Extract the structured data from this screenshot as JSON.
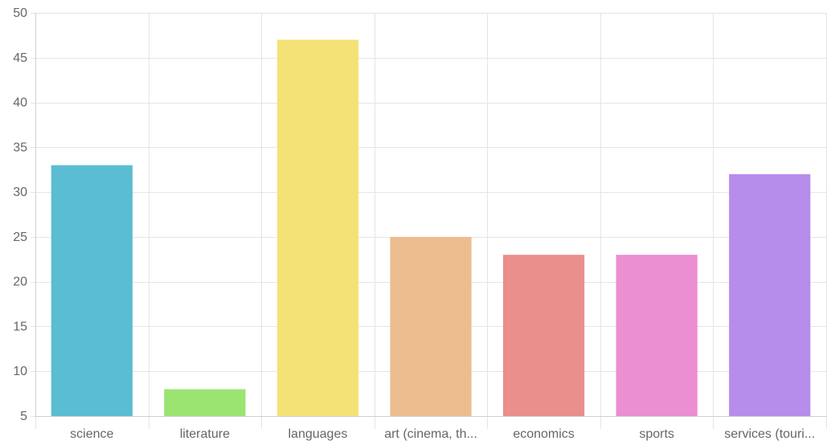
{
  "chart_data": {
    "type": "bar",
    "categories": [
      "science",
      "literature",
      "languages",
      "art (cinema, th...",
      "economics",
      "sports",
      "services (touri..."
    ],
    "values": [
      33,
      8,
      47,
      25,
      23,
      23,
      32
    ],
    "colors": [
      "#5bbdd1",
      "#9be471",
      "#f5e276",
      "#ecbd8f",
      "#ea8f8b",
      "#eb8ed2",
      "#b68dea"
    ],
    "title": "",
    "xlabel": "",
    "ylabel": "",
    "ylim": [
      5,
      50
    ],
    "yticks": [
      5,
      10,
      15,
      20,
      25,
      30,
      35,
      40,
      45,
      50
    ],
    "grid": true
  }
}
